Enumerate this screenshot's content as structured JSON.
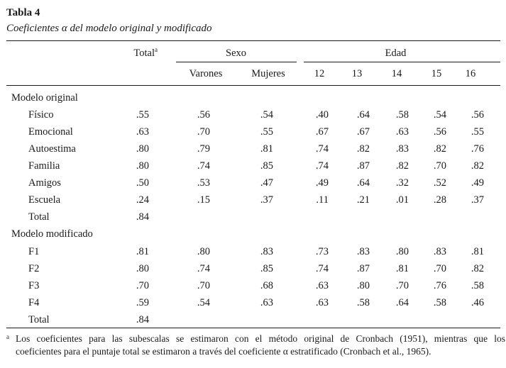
{
  "table": {
    "title": "Tabla 4",
    "subtitle": "Coeficientes α del modelo original y modificado",
    "headers": {
      "total": "Total",
      "total_sup": "a",
      "sexo": "Sexo",
      "edad": "Edad",
      "varones": "Varones",
      "mujeres": "Mujeres",
      "ages": [
        "12",
        "13",
        "14",
        "15",
        "16"
      ]
    },
    "sections": [
      {
        "label": "Modelo original",
        "rows": [
          {
            "label": "Físico",
            "values": [
              ".55",
              ".56",
              ".54",
              ".40",
              ".64",
              ".58",
              ".54",
              ".56"
            ]
          },
          {
            "label": "Emocional",
            "values": [
              ".63",
              ".70",
              ".55",
              ".67",
              ".67",
              ".63",
              ".56",
              ".55"
            ]
          },
          {
            "label": "Autoestima",
            "values": [
              ".80",
              ".79",
              ".81",
              ".74",
              ".82",
              ".83",
              ".82",
              ".76"
            ]
          },
          {
            "label": "Familia",
            "values": [
              ".80",
              ".74",
              ".85",
              ".74",
              ".87",
              ".82",
              ".70",
              ".82"
            ]
          },
          {
            "label": "Amigos",
            "values": [
              ".50",
              ".53",
              ".47",
              ".49",
              ".64",
              ".32",
              ".52",
              ".49"
            ]
          },
          {
            "label": "Escuela",
            "values": [
              ".24",
              ".15",
              ".37",
              ".11",
              ".21",
              ".01",
              ".28",
              ".37"
            ]
          },
          {
            "label": "Total",
            "values": [
              ".84",
              "",
              "",
              "",
              "",
              "",
              "",
              ""
            ]
          }
        ]
      },
      {
        "label": "Modelo modificado",
        "rows": [
          {
            "label": "F1",
            "values": [
              ".81",
              ".80",
              ".83",
              ".73",
              ".83",
              ".80",
              ".83",
              ".81"
            ]
          },
          {
            "label": "F2",
            "values": [
              ".80",
              ".74",
              ".85",
              ".74",
              ".87",
              ".81",
              ".70",
              ".82"
            ]
          },
          {
            "label": "F3",
            "values": [
              ".70",
              ".70",
              ".68",
              ".63",
              ".80",
              ".70",
              ".76",
              ".58"
            ]
          },
          {
            "label": "F4",
            "values": [
              ".59",
              ".54",
              ".63",
              ".63",
              ".58",
              ".64",
              ".58",
              ".46"
            ]
          },
          {
            "label": "Total",
            "values": [
              ".84",
              "",
              "",
              "",
              "",
              "",
              "",
              ""
            ]
          }
        ]
      }
    ],
    "footnote": {
      "mark": "a",
      "line1": "Los coeficientes para las subescalas se estimaron con el método original de Cronbach (1951), mientras que los",
      "line2": "coeficientes para el puntaje total se estimaron a través del coeficiente α estratificado (Cronbach et al., 1965)."
    }
  }
}
